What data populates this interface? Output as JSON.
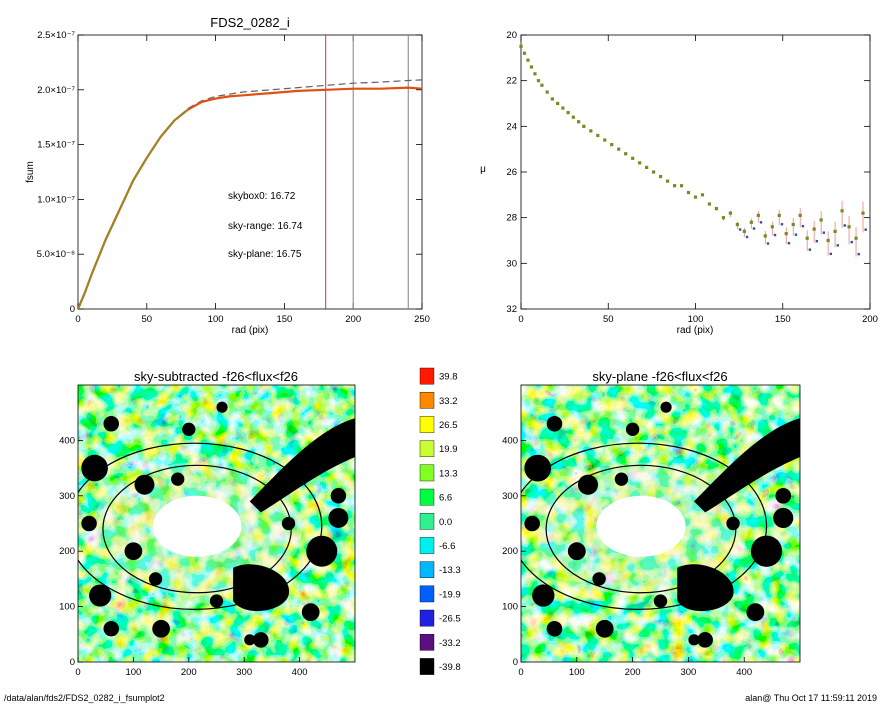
{
  "footer": {
    "left": "/data/alan/fds2/FDS2_0282_i_fsumplot2",
    "right": "alan@  Thu Oct 17 11:59:11 2019"
  },
  "chart_data": [
    {
      "type": "line",
      "title": "FDS2_0282_i",
      "xlabel": "rad (pix)",
      "ylabel": "fsum",
      "xlim": [
        0,
        250
      ],
      "ylim": [
        0,
        2.5e-07
      ],
      "xticks": [
        "0",
        "50",
        "100",
        "150",
        "200",
        "250"
      ],
      "yticks": [
        "0",
        "5.0×10⁻⁸",
        "1.0×10⁻⁷",
        "1.5×10⁻⁷",
        "2.0×10⁻⁷",
        "2.5×10⁻⁷"
      ],
      "vlines": [
        {
          "x": 180,
          "color": "#e03020"
        },
        {
          "x": 200,
          "color": "#808080"
        },
        {
          "x": 240,
          "color": "#808080"
        }
      ],
      "annotations": [
        {
          "text": "skybox0: 16.72",
          "color": "#000000"
        },
        {
          "text": "sky-range: 16.74",
          "color": "#e02020"
        },
        {
          "text": "sky-plane: 16.75",
          "color": "#20e020"
        }
      ],
      "series": [
        {
          "style": "dashed",
          "color": "#606060",
          "x": [
            0,
            5,
            10,
            20,
            30,
            40,
            50,
            60,
            70,
            80,
            90,
            100,
            110,
            120,
            140,
            160,
            180,
            200,
            220,
            240,
            250
          ],
          "y": [
            0,
            1.5e-08,
            3.2e-08,
            6.3e-08,
            9e-08,
            1.17e-07,
            1.38e-07,
            1.57e-07,
            1.72e-07,
            1.83e-07,
            1.9e-07,
            1.94e-07,
            1.96e-07,
            1.98e-07,
            2e-07,
            2.02e-07,
            2.04e-07,
            2.06e-07,
            2.07e-07,
            2.085e-07,
            2.09e-07
          ]
        },
        {
          "style": "solid",
          "color": "#e05010",
          "x": [
            0,
            5,
            10,
            20,
            30,
            40,
            50,
            60,
            70,
            80,
            90,
            100,
            110,
            120,
            140,
            160,
            180,
            200,
            220,
            240,
            250
          ],
          "y": [
            0,
            1.5e-08,
            3.2e-08,
            6.3e-08,
            9e-08,
            1.17e-07,
            1.38e-07,
            1.57e-07,
            1.72e-07,
            1.82e-07,
            1.89e-07,
            1.92e-07,
            1.94e-07,
            1.95e-07,
            1.97e-07,
            1.99e-07,
            2e-07,
            2.01e-07,
            2.01e-07,
            2.02e-07,
            2.01e-07
          ]
        },
        {
          "style": "solid",
          "color": "#70a020",
          "x": [
            0,
            5,
            10,
            20,
            30,
            40,
            50,
            60,
            70,
            80
          ],
          "y": [
            0,
            1.5e-08,
            3.2e-08,
            6.3e-08,
            9e-08,
            1.17e-07,
            1.38e-07,
            1.57e-07,
            1.72e-07,
            1.82e-07
          ]
        }
      ]
    },
    {
      "type": "scatter",
      "xlabel": "rad (pix)",
      "ylabel": "μ",
      "xlim": [
        0,
        200
      ],
      "ylim": [
        32,
        20
      ],
      "xticks": [
        "0",
        "50",
        "100",
        "150",
        "200"
      ],
      "yticks": [
        "20",
        "22",
        "24",
        "26",
        "28",
        "30",
        "32"
      ],
      "series": [
        {
          "color": "#7a8a20",
          "x": [
            0,
            2,
            4,
            6,
            8,
            10,
            12,
            15,
            18,
            21,
            24,
            27,
            30,
            33,
            36,
            40,
            44,
            48,
            52,
            56,
            60,
            64,
            68,
            72,
            76,
            80,
            84,
            88,
            92,
            96,
            100,
            104,
            108,
            112,
            116,
            120,
            124,
            128,
            132,
            136,
            140,
            144,
            148,
            152,
            156,
            160,
            164,
            168,
            172,
            176,
            180,
            184,
            188,
            192,
            196
          ],
          "y": [
            20.5,
            20.8,
            21.1,
            21.4,
            21.7,
            22.0,
            22.2,
            22.5,
            22.8,
            23.0,
            23.2,
            23.4,
            23.6,
            23.8,
            24.0,
            24.2,
            24.4,
            24.6,
            24.8,
            25.0,
            25.2,
            25.4,
            25.6,
            25.8,
            26.0,
            26.2,
            26.4,
            26.6,
            26.6,
            26.9,
            27.1,
            27.0,
            27.4,
            27.6,
            28.0,
            27.8,
            28.3,
            28.6,
            28.2,
            27.9,
            28.8,
            28.4,
            27.9,
            28.7,
            28.3,
            27.9,
            28.9,
            28.5,
            28.1,
            29.0,
            28.6,
            27.7,
            28.4,
            28.9,
            27.8
          ]
        }
      ]
    },
    {
      "type": "heatmap",
      "title": "sky-subtracted -f26<flux<f26",
      "xlim": [
        0,
        500
      ],
      "ylim": [
        0,
        500
      ],
      "xticks": [
        "0",
        "100",
        "200",
        "300",
        "400"
      ],
      "yticks": [
        "0",
        "100",
        "200",
        "300",
        "400"
      ]
    },
    {
      "type": "heatmap",
      "title": "sky-plane -f26<flux<f26",
      "xlim": [
        0,
        500
      ],
      "ylim": [
        0,
        500
      ],
      "xticks": [
        "0",
        "100",
        "200",
        "300",
        "400"
      ],
      "yticks": [
        "0",
        "100",
        "200",
        "300",
        "400"
      ]
    },
    {
      "type": "colorbar",
      "labels": [
        "39.8",
        "33.2",
        "26.5",
        "19.9",
        "13.3",
        "6.6",
        "0.0",
        "-6.6",
        "-13.3",
        "-19.9",
        "-26.5",
        "-33.2",
        "-39.8"
      ],
      "colors": [
        "#ff1a00",
        "#ff8800",
        "#ffff00",
        "#c8ff30",
        "#80ff20",
        "#00ff40",
        "#30f090",
        "#00f0f0",
        "#00b8ff",
        "#0060ff",
        "#2020e0",
        "#5a1080",
        "#000000"
      ]
    }
  ]
}
